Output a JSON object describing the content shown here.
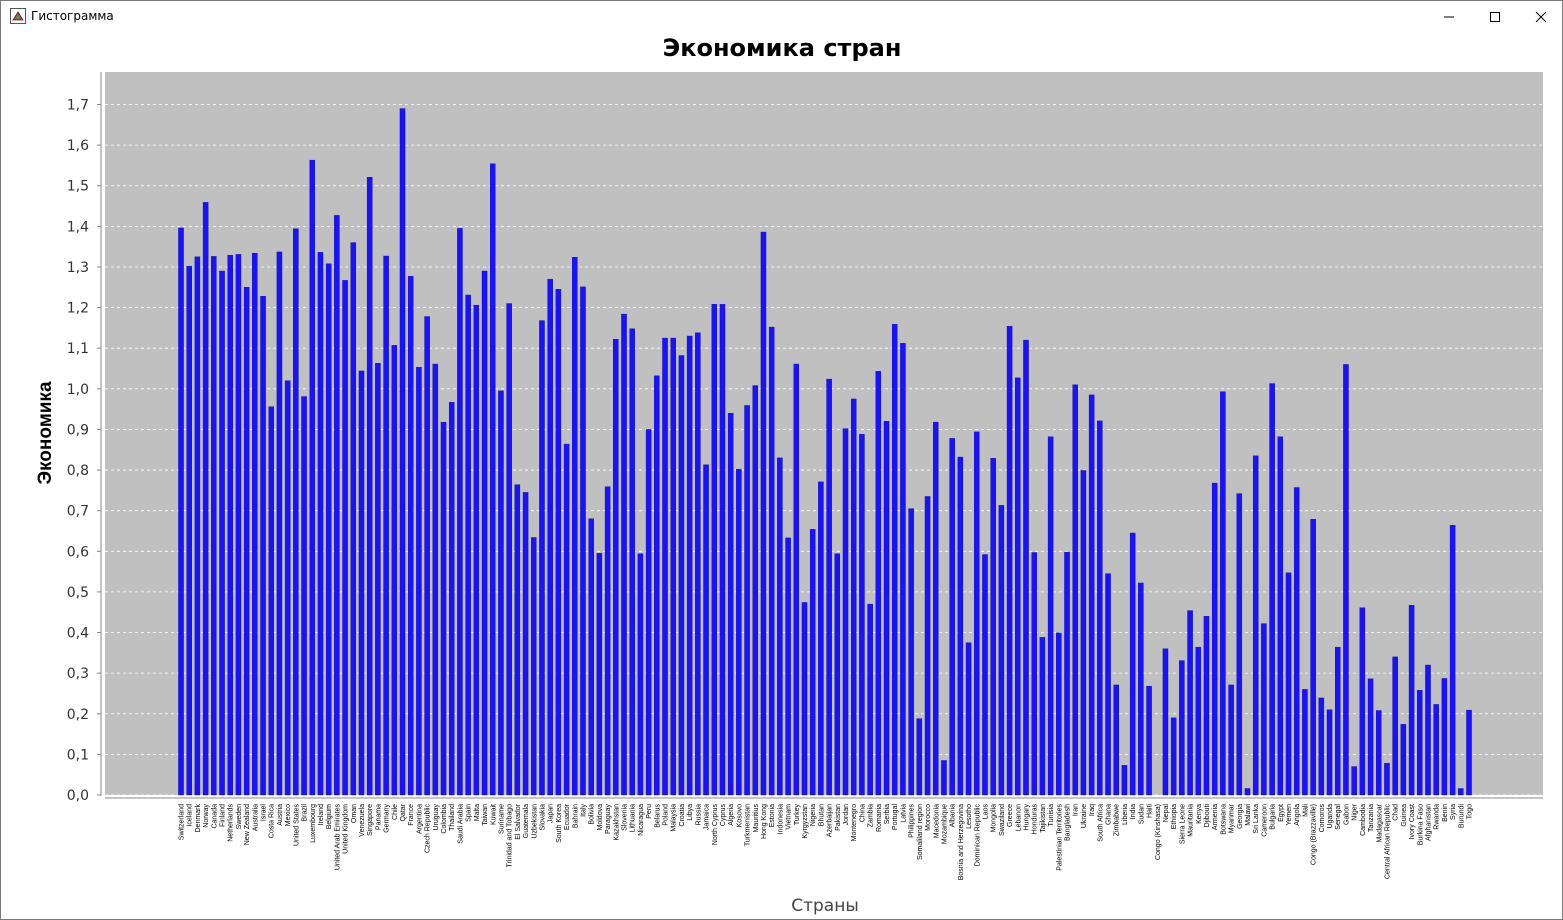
{
  "window": {
    "title": "Гистограмма",
    "icons": [
      "app-icon",
      "minimize-icon",
      "maximize-icon",
      "close-icon"
    ]
  },
  "colors": {
    "bar": "#1a12ff",
    "plot_background": "#c0c0c0",
    "gridline": "#ffffff",
    "text": "#000000"
  },
  "chart_data": {
    "type": "bar",
    "title": "Экономика стран",
    "xlabel": "Страны",
    "ylabel": "Экономика",
    "ylim": [
      0,
      1.78
    ],
    "grid": true,
    "legend": "none",
    "yticks": [
      "0,0",
      "0,1",
      "0,2",
      "0,3",
      "0,4",
      "0,5",
      "0,6",
      "0,7",
      "0,8",
      "0,9",
      "1,0",
      "1,1",
      "1,2",
      "1,3",
      "1,4",
      "1,5",
      "1,6",
      "1,7"
    ],
    "categories": [
      "Switzerland",
      "Iceland",
      "Denmark",
      "Norway",
      "Canada",
      "Finland",
      "Netherlands",
      "Sweden",
      "New Zealand",
      "Australia",
      "Israel",
      "Costa Rica",
      "Austria",
      "Mexico",
      "United States",
      "Brazil",
      "Luxembourg",
      "Ireland",
      "Belgium",
      "United Arab Emirates",
      "United Kingdom",
      "Oman",
      "Venezuela",
      "Singapore",
      "Panama",
      "Germany",
      "Chile",
      "Qatar",
      "France",
      "Argentina",
      "Czech Republic",
      "Uruguay",
      "Colombia",
      "Thailand",
      "Saudi Arabia",
      "Spain",
      "Malta",
      "Taiwan",
      "Kuwait",
      "Suriname",
      "Trinidad and Tobago",
      "El Salvador",
      "Guatemala",
      "Uzbekistan",
      "Slovakia",
      "Japan",
      "South Korea",
      "Ecuador",
      "Bahrain",
      "Italy",
      "Bolivia",
      "Moldova",
      "Paraguay",
      "Kazakhstan",
      "Slovenia",
      "Lithuania",
      "Nicaragua",
      "Peru",
      "Belarus",
      "Poland",
      "Malaysia",
      "Croatia",
      "Libya",
      "Russia",
      "Jamaica",
      "North Cyprus",
      "Cyprus",
      "Algeria",
      "Kosovo",
      "Turkmenistan",
      "Mauritius",
      "Hong Kong",
      "Estonia",
      "Indonesia",
      "Vietnam",
      "Turkey",
      "Kyrgyzstan",
      "Nigeria",
      "Bhutan",
      "Azerbaijan",
      "Pakistan",
      "Jordan",
      "Montenegro",
      "China",
      "Zambia",
      "Romania",
      "Serbia",
      "Portugal",
      "Latvia",
      "Philippines",
      "Somaliland region",
      "Morocco",
      "Macedonia",
      "Mozambique",
      "Albania",
      "Bosnia and Herzegovina",
      "Lesotho",
      "Dominican Republic",
      "Laos",
      "Mongolia",
      "Swaziland",
      "Greece",
      "Lebanon",
      "Hungary",
      "Honduras",
      "Tajikistan",
      "Tunisia",
      "Palestinian Territories",
      "Bangladesh",
      "Iran",
      "Ukraine",
      "Iraq",
      "South Africa",
      "Ghana",
      "Zimbabwe",
      "Liberia",
      "India",
      "Sudan",
      "Haiti",
      "Congo (Kinshasa)",
      "Nepal",
      "Ethiopia",
      "Sierra Leone",
      "Mauritania",
      "Kenya",
      "Djibouti",
      "Armenia",
      "Botswana",
      "Myanmar",
      "Georgia",
      "Malawi",
      "Sri Lanka",
      "Cameroon",
      "Bulgaria",
      "Egypt",
      "Yemen",
      "Angola",
      "Mali",
      "Congo (Brazzaville)",
      "Comoros",
      "Uganda",
      "Senegal",
      "Gabon",
      "Niger",
      "Cambodia",
      "Tanzania",
      "Madagascar",
      "Central African Republic",
      "Chad",
      "Guinea",
      "Ivory Coast",
      "Burkina Faso",
      "Afghanistan",
      "Rwanda",
      "Benin",
      "Syria",
      "Burundi",
      "Togo"
    ],
    "values": [
      1.396,
      1.302,
      1.325,
      1.459,
      1.326,
      1.29,
      1.329,
      1.331,
      1.25,
      1.334,
      1.228,
      0.956,
      1.337,
      1.02,
      1.394,
      0.981,
      1.563,
      1.336,
      1.308,
      1.427,
      1.267,
      1.36,
      1.044,
      1.521,
      1.063,
      1.327,
      1.107,
      1.69,
      1.277,
      1.053,
      1.178,
      1.061,
      0.918,
      0.967,
      1.395,
      1.231,
      1.206,
      1.29,
      1.554,
      0.995,
      1.21,
      0.764,
      0.745,
      0.634,
      1.168,
      1.27,
      1.245,
      0.864,
      1.324,
      1.251,
      0.68,
      0.595,
      0.759,
      1.122,
      1.184,
      1.148,
      0.594,
      0.9,
      1.032,
      1.125,
      1.125,
      1.082,
      1.13,
      1.138,
      0.813,
      1.208,
      1.208,
      0.94,
      0.802,
      0.959,
      1.008,
      1.386,
      1.152,
      0.83,
      0.633,
      1.061,
      0.474,
      0.654,
      0.771,
      1.024,
      0.594,
      0.902,
      0.975,
      0.888,
      0.47,
      1.043,
      0.92,
      1.159,
      1.112,
      0.705,
      0.188,
      0.735,
      0.918,
      0.085,
      0.878,
      0.832,
      0.375,
      0.894,
      0.592,
      0.829,
      0.713,
      1.154,
      1.027,
      1.12,
      0.597,
      0.388,
      0.882,
      0.399,
      0.598,
      1.01,
      0.799,
      0.985,
      0.921,
      0.545,
      0.271,
      0.073,
      0.645,
      0.522,
      0.268,
      0.0,
      0.36,
      0.19,
      0.331,
      0.454,
      0.364,
      0.44,
      0.768,
      0.993,
      0.271,
      0.742,
      0.016,
      0.835,
      0.422,
      1.013,
      0.882,
      0.547,
      0.757,
      0.26,
      0.679,
      0.239,
      0.21,
      0.364,
      1.06,
      0.07,
      0.461,
      0.286,
      0.208,
      0.078,
      0.34,
      0.174,
      0.467,
      0.258,
      0.32,
      0.223,
      0.287,
      0.664,
      0.016,
      0.209
    ]
  }
}
